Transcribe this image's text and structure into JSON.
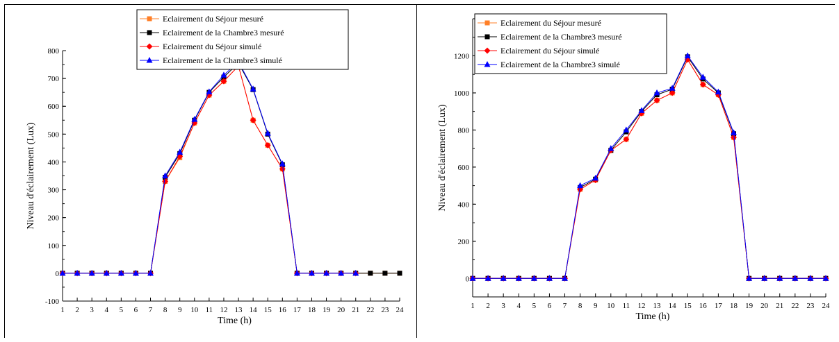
{
  "chart_data": [
    {
      "type": "line",
      "xlabel": "Time (h)",
      "ylabel": "Niveau d'éclairement (Lux)",
      "xlim": [
        1,
        24
      ],
      "ylim": [
        -100,
        800
      ],
      "xticks": [
        1,
        2,
        3,
        4,
        5,
        6,
        7,
        8,
        9,
        10,
        11,
        12,
        13,
        14,
        15,
        16,
        17,
        18,
        19,
        20,
        21,
        22,
        23,
        24
      ],
      "yticks": [
        -100,
        0,
        100,
        200,
        300,
        400,
        500,
        600,
        700,
        800
      ],
      "grid": false,
      "legend_position": "top",
      "x": [
        1,
        2,
        3,
        4,
        5,
        6,
        7,
        8,
        9,
        10,
        11,
        12,
        13,
        14,
        15,
        16,
        17,
        18,
        19,
        20,
        21,
        22,
        23,
        24
      ],
      "series": [
        {
          "name": "Eclairement du Séjour mesuré",
          "color": "#ff7f27",
          "marker": "square",
          "values": [
            0,
            0,
            0,
            0,
            0,
            0,
            0,
            330,
            415,
            540,
            640,
            690,
            745,
            550,
            460,
            375,
            0,
            0,
            0,
            0,
            0,
            0,
            0,
            0
          ]
        },
        {
          "name": "Eclairement de la Chambre3 mesuré",
          "color": "#000000",
          "marker": "square",
          "values": [
            0,
            0,
            0,
            0,
            0,
            0,
            0,
            345,
            430,
            550,
            650,
            705,
            755,
            660,
            500,
            390,
            0,
            0,
            0,
            0,
            0,
            0,
            0,
            0
          ]
        },
        {
          "name": "Eclairement du Séjour simulé",
          "color": "#ff0000",
          "marker": "diamond",
          "values": [
            0,
            0,
            0,
            0,
            0,
            0,
            0,
            330,
            420,
            540,
            640,
            690,
            745,
            550,
            460,
            375,
            0,
            0,
            0,
            0,
            0,
            null,
            null,
            null
          ]
        },
        {
          "name": "Eclairement de la Chambre3 simulé",
          "color": "#0000ff",
          "marker": "triangle",
          "values": [
            0,
            0,
            0,
            0,
            0,
            0,
            0,
            350,
            435,
            553,
            652,
            712,
            760,
            662,
            503,
            393,
            0,
            0,
            0,
            0,
            0,
            null,
            null,
            null
          ]
        }
      ]
    },
    {
      "type": "line",
      "xlabel": "Time (h)",
      "ylabel": "Niveau d'éclairement (Lux)",
      "xlim": [
        1,
        24
      ],
      "ylim": [
        -100,
        1400
      ],
      "xticks": [
        1,
        2,
        3,
        4,
        5,
        6,
        7,
        8,
        9,
        10,
        11,
        12,
        13,
        14,
        15,
        16,
        17,
        18,
        19,
        20,
        21,
        22,
        23,
        24
      ],
      "yticks": [
        0,
        200,
        400,
        600,
        800,
        1000,
        1200
      ],
      "grid": false,
      "legend_position": "top-left",
      "x": [
        1,
        2,
        3,
        4,
        5,
        6,
        7,
        8,
        9,
        10,
        11,
        12,
        13,
        14,
        15,
        16,
        17,
        18,
        19,
        20,
        21,
        22,
        23,
        24
      ],
      "series": [
        {
          "name": "Eclairement du Séjour mesuré",
          "color": "#ff7f27",
          "marker": "square",
          "values": [
            0,
            0,
            0,
            0,
            0,
            0,
            0,
            480,
            530,
            690,
            750,
            890,
            960,
            1000,
            1180,
            1045,
            990,
            760,
            0,
            0,
            0,
            0,
            0,
            0
          ]
        },
        {
          "name": "Eclairement de la Chambre3 mesuré",
          "color": "#000000",
          "marker": "square",
          "values": [
            0,
            0,
            0,
            0,
            0,
            0,
            0,
            490,
            535,
            690,
            790,
            900,
            990,
            1020,
            1195,
            1075,
            1000,
            780,
            0,
            0,
            0,
            0,
            0,
            0
          ]
        },
        {
          "name": "Eclairement du Séjour simulé",
          "color": "#ff0000",
          "marker": "diamond",
          "values": [
            0,
            0,
            0,
            0,
            0,
            0,
            0,
            480,
            530,
            690,
            750,
            890,
            960,
            1000,
            1180,
            1045,
            990,
            760,
            0,
            0,
            0,
            0,
            0,
            0
          ]
        },
        {
          "name": "Eclairement de la Chambre3 simulé",
          "color": "#0000ff",
          "marker": "triangle",
          "values": [
            0,
            0,
            0,
            0,
            0,
            0,
            0,
            500,
            540,
            700,
            800,
            905,
            1000,
            1025,
            1200,
            1085,
            1005,
            785,
            0,
            0,
            0,
            0,
            0,
            0
          ]
        }
      ]
    }
  ]
}
